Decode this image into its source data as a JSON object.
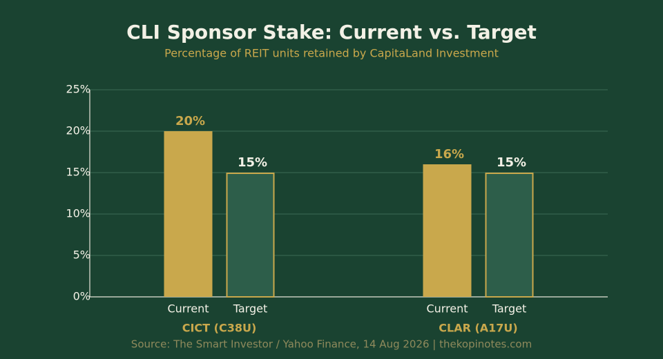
{
  "chart_data": {
    "type": "grouped_bar",
    "title": "CLI Sponsor Stake: Current vs. Target",
    "subtitle": "Percentage of REIT units retained by CapitaLand Investment",
    "source": "Source: The Smart Investor / Yahoo Finance, 14 Aug 2026 | thekopinotes.com",
    "categories": [
      "CICT (C38U)",
      "CLAR (A17U)"
    ],
    "series": [
      {
        "name": "Current",
        "color": "#c9a84c",
        "values": [
          20,
          16
        ],
        "value_labels": [
          "20%",
          "16%"
        ]
      },
      {
        "name": "Target",
        "color": "#2d5e4a",
        "edgecolor": "#c9a84c",
        "values": [
          15,
          15
        ],
        "value_labels": [
          "15%",
          "15%"
        ]
      }
    ],
    "ylim": [
      0,
      25
    ],
    "yticks": [
      {
        "value": 0,
        "label": "0%"
      },
      {
        "value": 5,
        "label": "5%"
      },
      {
        "value": 10,
        "label": "10%"
      },
      {
        "value": 15,
        "label": "15%"
      },
      {
        "value": 20,
        "label": "20%"
      },
      {
        "value": 25,
        "label": "25%"
      }
    ],
    "grid": true
  }
}
